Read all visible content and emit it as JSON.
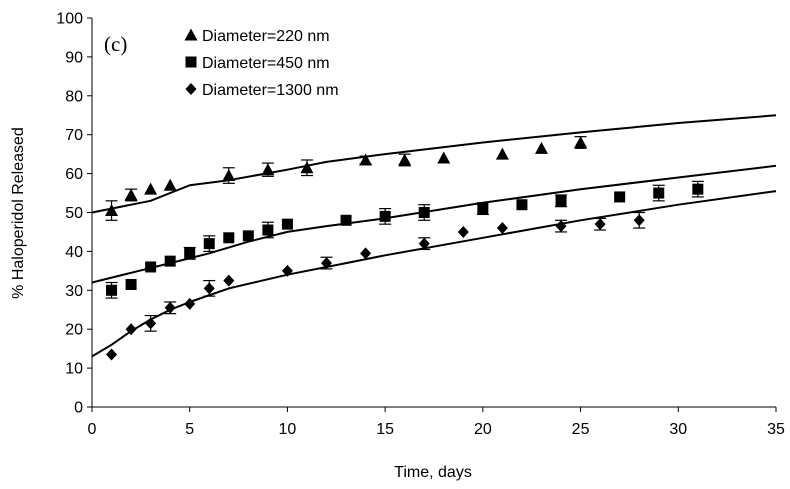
{
  "chart_data": {
    "type": "scatter",
    "panel_label": "(c)",
    "xlabel": "Time, days",
    "ylabel": "% Haloperidol Released",
    "xlim": [
      0,
      35
    ],
    "ylim": [
      0,
      100
    ],
    "xticks": [
      0,
      5,
      10,
      15,
      20,
      25,
      30,
      35
    ],
    "yticks": [
      0,
      10,
      20,
      30,
      40,
      50,
      60,
      70,
      80,
      90,
      100
    ],
    "grid": false,
    "legend_position": "top-left",
    "series": [
      {
        "name": "Diameter=220 nm",
        "marker": "triangle",
        "points": [
          {
            "x": 1,
            "y": 50.5,
            "err": 2.5
          },
          {
            "x": 2,
            "y": 54.5,
            "err": 1.5
          },
          {
            "x": 3,
            "y": 56
          },
          {
            "x": 4,
            "y": 57
          },
          {
            "x": 7,
            "y": 59.5,
            "err": 2
          },
          {
            "x": 9,
            "y": 61,
            "err": 1.7
          },
          {
            "x": 11,
            "y": 61.5,
            "err": 2
          },
          {
            "x": 14,
            "y": 63.5,
            "err": 1
          },
          {
            "x": 16,
            "y": 63.5,
            "err": 1.5
          },
          {
            "x": 18,
            "y": 64
          },
          {
            "x": 21,
            "y": 65
          },
          {
            "x": 23,
            "y": 66.5
          },
          {
            "x": 25,
            "y": 68,
            "err": 1.5
          }
        ],
        "fit": [
          [
            0,
            50
          ],
          [
            1,
            51
          ],
          [
            2,
            52
          ],
          [
            3,
            53
          ],
          [
            4,
            55
          ],
          [
            5,
            57
          ],
          [
            7,
            58.3
          ],
          [
            10,
            61
          ],
          [
            12,
            63
          ],
          [
            15,
            65
          ],
          [
            20,
            68
          ],
          [
            25,
            70.6
          ],
          [
            30,
            73
          ],
          [
            35,
            75
          ]
        ]
      },
      {
        "name": "Diameter=450 nm",
        "marker": "square",
        "points": [
          {
            "x": 1,
            "y": 30,
            "err": 2
          },
          {
            "x": 2,
            "y": 31.5
          },
          {
            "x": 3,
            "y": 36
          },
          {
            "x": 4,
            "y": 37.5
          },
          {
            "x": 5,
            "y": 39.5,
            "err": 1.5
          },
          {
            "x": 6,
            "y": 42,
            "err": 2
          },
          {
            "x": 7,
            "y": 43.5
          },
          {
            "x": 8,
            "y": 44
          },
          {
            "x": 9,
            "y": 45.5,
            "err": 2
          },
          {
            "x": 10,
            "y": 47
          },
          {
            "x": 13,
            "y": 48
          },
          {
            "x": 15,
            "y": 49,
            "err": 2
          },
          {
            "x": 17,
            "y": 50,
            "err": 2
          },
          {
            "x": 20,
            "y": 51,
            "err": 1.5
          },
          {
            "x": 22,
            "y": 52
          },
          {
            "x": 24,
            "y": 53,
            "err": 1.5
          },
          {
            "x": 27,
            "y": 54
          },
          {
            "x": 29,
            "y": 55,
            "err": 2
          },
          {
            "x": 31,
            "y": 56,
            "err": 2
          }
        ],
        "fit": [
          [
            0,
            32
          ],
          [
            2,
            34.5
          ],
          [
            4,
            37
          ],
          [
            6,
            39.5
          ],
          [
            8,
            42.5
          ],
          [
            10,
            45
          ],
          [
            12,
            46.5
          ],
          [
            15,
            48.5
          ],
          [
            20,
            52.5
          ],
          [
            25,
            56
          ],
          [
            30,
            59
          ],
          [
            35,
            62
          ]
        ]
      },
      {
        "name": "Diameter=1300 nm",
        "marker": "diamond",
        "points": [
          {
            "x": 1,
            "y": 13.5
          },
          {
            "x": 2,
            "y": 20
          },
          {
            "x": 3,
            "y": 21.5,
            "err": 2
          },
          {
            "x": 4,
            "y": 25.5,
            "err": 1.5
          },
          {
            "x": 5,
            "y": 26.5
          },
          {
            "x": 6,
            "y": 30.5,
            "err": 2
          },
          {
            "x": 7,
            "y": 32.5
          },
          {
            "x": 10,
            "y": 35
          },
          {
            "x": 12,
            "y": 37,
            "err": 1.5
          },
          {
            "x": 14,
            "y": 39.5
          },
          {
            "x": 17,
            "y": 42,
            "err": 1.5
          },
          {
            "x": 19,
            "y": 45
          },
          {
            "x": 21,
            "y": 46
          },
          {
            "x": 24,
            "y": 46.5,
            "err": 1.5
          },
          {
            "x": 26,
            "y": 47,
            "err": 1.5
          },
          {
            "x": 28,
            "y": 48,
            "err": 2
          }
        ],
        "fit": [
          [
            0,
            13
          ],
          [
            1,
            16
          ],
          [
            2,
            19.5
          ],
          [
            3,
            22.5
          ],
          [
            4,
            25
          ],
          [
            5,
            27
          ],
          [
            7,
            30.5
          ],
          [
            10,
            34
          ],
          [
            13,
            37
          ],
          [
            15,
            39
          ],
          [
            20,
            43.5
          ],
          [
            25,
            48
          ],
          [
            30,
            52
          ],
          [
            35,
            55.5
          ]
        ]
      }
    ]
  }
}
